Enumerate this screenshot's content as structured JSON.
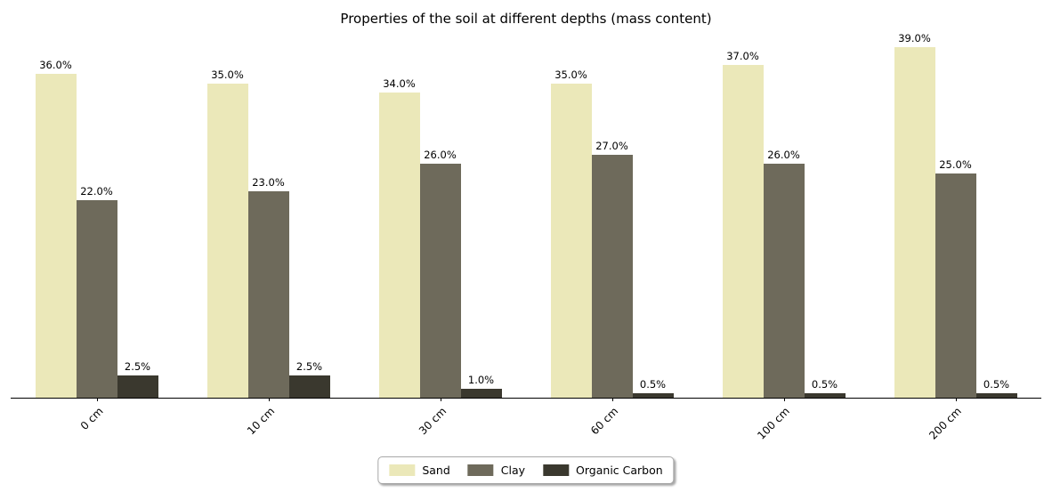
{
  "chart_data": {
    "type": "bar",
    "title": "Properties of the soil at different depths (mass content)",
    "categories": [
      "0 cm",
      "10 cm",
      "30 cm",
      "60 cm",
      "100 cm",
      "200 cm"
    ],
    "series": [
      {
        "name": "Sand",
        "color": "#ebe8b9",
        "values": [
          36.0,
          35.0,
          34.0,
          35.0,
          37.0,
          39.0
        ]
      },
      {
        "name": "Clay",
        "color": "#6e6a5b",
        "values": [
          22.0,
          23.0,
          26.0,
          27.0,
          26.0,
          25.0
        ]
      },
      {
        "name": "Organic Carbon",
        "color": "#3a382e",
        "values": [
          2.5,
          2.5,
          1.0,
          0.5,
          0.5,
          0.5
        ]
      }
    ],
    "value_label_suffix": "%",
    "value_label_decimals": 1,
    "xlabel": "",
    "ylabel": "",
    "ylim": [
      0,
      40
    ],
    "grid": false,
    "legend_position": "bottom-center",
    "bar_value_labels": true
  }
}
